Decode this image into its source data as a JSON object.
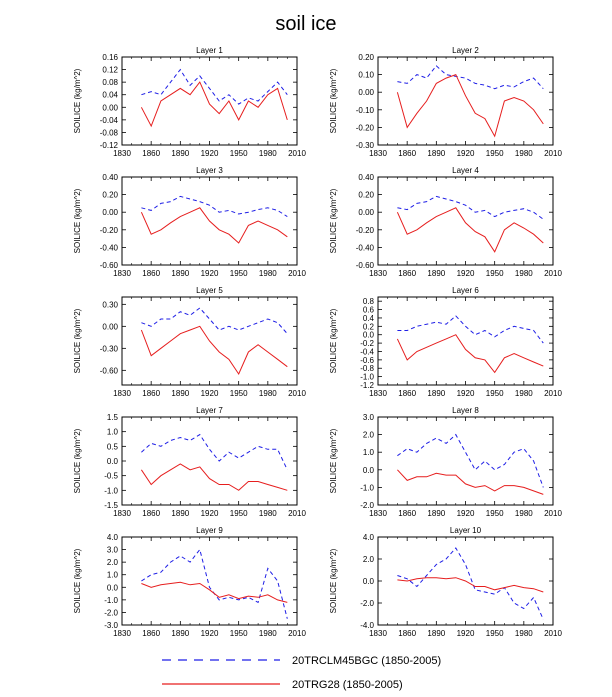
{
  "title": "soil ice",
  "colors": {
    "series_a": "#1e1ee6",
    "series_b": "#e61e1e",
    "axis": "#000000"
  },
  "legend": [
    {
      "label": "20TRCLM45BGC (1850-2005)",
      "style": "dashed",
      "color": "#1e1ee6"
    },
    {
      "label": "20TRG28 (1850-2005)",
      "style": "solid",
      "color": "#e61e1e"
    }
  ],
  "chart_data": [
    {
      "type": "line",
      "title": "Layer 1",
      "ylabel": "SOILICE  (kg/m^2)",
      "xlim": [
        1830,
        2010
      ],
      "xticks": [
        "1830",
        "1860",
        "1890",
        "1920",
        "1950",
        "1980",
        "2010"
      ],
      "ylim": [
        -0.12,
        0.16
      ],
      "yticks": [
        "-0.12",
        "-0.08",
        "-0.04",
        "0.00",
        "0.04",
        "0.08",
        "0.12",
        "0.16"
      ],
      "series": [
        {
          "name": "20TRCLM45BGC (1850-2005)",
          "x": [
            1850,
            1860,
            1870,
            1880,
            1890,
            1900,
            1910,
            1920,
            1930,
            1940,
            1950,
            1960,
            1970,
            1980,
            1990,
            2000
          ],
          "values": [
            0.04,
            0.05,
            0.04,
            0.08,
            0.12,
            0.07,
            0.1,
            0.06,
            0.02,
            0.04,
            0.01,
            0.03,
            0.02,
            0.05,
            0.08,
            0.04
          ]
        },
        {
          "name": "20TRG28 (1850-2005)",
          "x": [
            1850,
            1860,
            1870,
            1880,
            1890,
            1900,
            1910,
            1920,
            1930,
            1940,
            1950,
            1960,
            1970,
            1980,
            1990,
            2000
          ],
          "values": [
            0.0,
            -0.06,
            0.02,
            0.04,
            0.06,
            0.04,
            0.08,
            0.01,
            -0.02,
            0.02,
            -0.04,
            0.02,
            0.0,
            0.04,
            0.06,
            -0.04
          ]
        }
      ]
    },
    {
      "type": "line",
      "title": "Layer 2",
      "ylabel": "SOILICE  (kg/m^2)",
      "xlim": [
        1830,
        2010
      ],
      "xticks": [
        "1830",
        "1860",
        "1890",
        "1920",
        "1950",
        "1980",
        "2010"
      ],
      "ylim": [
        -0.3,
        0.2
      ],
      "yticks": [
        "-0.30",
        "-0.20",
        "-0.10",
        "0.00",
        "0.10",
        "0.20"
      ],
      "series": [
        {
          "name": "20TRCLM45BGC (1850-2005)",
          "x": [
            1850,
            1860,
            1870,
            1880,
            1890,
            1900,
            1910,
            1920,
            1930,
            1940,
            1950,
            1960,
            1970,
            1980,
            1990,
            2000
          ],
          "values": [
            0.06,
            0.05,
            0.1,
            0.08,
            0.15,
            0.1,
            0.09,
            0.08,
            0.05,
            0.04,
            0.02,
            0.04,
            0.03,
            0.06,
            0.08,
            0.02
          ]
        },
        {
          "name": "20TRG28 (1850-2005)",
          "x": [
            1850,
            1860,
            1870,
            1880,
            1890,
            1900,
            1910,
            1920,
            1930,
            1940,
            1950,
            1960,
            1970,
            1980,
            1990,
            2000
          ],
          "values": [
            0.0,
            -0.2,
            -0.12,
            -0.05,
            0.05,
            0.08,
            0.1,
            -0.02,
            -0.12,
            -0.15,
            -0.25,
            -0.05,
            -0.03,
            -0.05,
            -0.1,
            -0.18
          ]
        }
      ]
    },
    {
      "type": "line",
      "title": "Layer 3",
      "ylabel": "SOILICE  (kg/m^2)",
      "xlim": [
        1830,
        2010
      ],
      "xticks": [
        "1830",
        "1860",
        "1890",
        "1920",
        "1950",
        "1980",
        "2010"
      ],
      "ylim": [
        -0.6,
        0.4
      ],
      "yticks": [
        "-0.60",
        "-0.40",
        "-0.20",
        "0.00",
        "0.20",
        "0.40"
      ],
      "series": [
        {
          "name": "20TRCLM45BGC (1850-2005)",
          "x": [
            1850,
            1860,
            1870,
            1880,
            1890,
            1900,
            1910,
            1920,
            1930,
            1940,
            1950,
            1960,
            1970,
            1980,
            1990,
            2000
          ],
          "values": [
            0.05,
            0.02,
            0.1,
            0.12,
            0.18,
            0.15,
            0.12,
            0.08,
            0.0,
            0.02,
            -0.02,
            0.0,
            0.03,
            0.05,
            0.02,
            -0.05
          ]
        },
        {
          "name": "20TRG28 (1850-2005)",
          "x": [
            1850,
            1860,
            1870,
            1880,
            1890,
            1900,
            1910,
            1920,
            1930,
            1940,
            1950,
            1960,
            1970,
            1980,
            1990,
            2000
          ],
          "values": [
            0.0,
            -0.25,
            -0.2,
            -0.12,
            -0.05,
            0.0,
            0.05,
            -0.1,
            -0.2,
            -0.25,
            -0.35,
            -0.15,
            -0.1,
            -0.15,
            -0.2,
            -0.28
          ]
        }
      ]
    },
    {
      "type": "line",
      "title": "Layer 4",
      "ylabel": "SOILICE  (kg/m^2)",
      "xlim": [
        1830,
        2010
      ],
      "xticks": [
        "1830",
        "1860",
        "1890",
        "1920",
        "1950",
        "1980",
        "2010"
      ],
      "ylim": [
        -0.6,
        0.4
      ],
      "yticks": [
        "-0.60",
        "-0.40",
        "-0.20",
        "0.00",
        "0.20",
        "0.40"
      ],
      "series": [
        {
          "name": "20TRCLM45BGC (1850-2005)",
          "x": [
            1850,
            1860,
            1870,
            1880,
            1890,
            1900,
            1910,
            1920,
            1930,
            1940,
            1950,
            1960,
            1970,
            1980,
            1990,
            2000
          ],
          "values": [
            0.05,
            0.03,
            0.1,
            0.12,
            0.18,
            0.15,
            0.12,
            0.08,
            0.0,
            0.02,
            -0.05,
            0.0,
            0.02,
            0.04,
            0.0,
            -0.08
          ]
        },
        {
          "name": "20TRG28 (1850-2005)",
          "x": [
            1850,
            1860,
            1870,
            1880,
            1890,
            1900,
            1910,
            1920,
            1930,
            1940,
            1950,
            1960,
            1970,
            1980,
            1990,
            2000
          ],
          "values": [
            0.0,
            -0.25,
            -0.2,
            -0.12,
            -0.05,
            0.0,
            0.05,
            -0.12,
            -0.22,
            -0.28,
            -0.45,
            -0.2,
            -0.12,
            -0.18,
            -0.25,
            -0.35
          ]
        }
      ]
    },
    {
      "type": "line",
      "title": "Layer 5",
      "ylabel": "SOILICE  (kg/m^2)",
      "xlim": [
        1830,
        2010
      ],
      "xticks": [
        "1830",
        "1860",
        "1890",
        "1920",
        "1950",
        "1980",
        "2010"
      ],
      "ylim": [
        -0.8,
        0.4
      ],
      "yticks": [
        "-0.60",
        "-0.30",
        "0.00",
        "0.30"
      ],
      "series": [
        {
          "name": "20TRCLM45BGC (1850-2005)",
          "x": [
            1850,
            1860,
            1870,
            1880,
            1890,
            1900,
            1910,
            1920,
            1930,
            1940,
            1950,
            1960,
            1970,
            1980,
            1990,
            2000
          ],
          "values": [
            0.05,
            0.0,
            0.1,
            0.1,
            0.2,
            0.15,
            0.25,
            0.1,
            -0.05,
            0.0,
            -0.05,
            0.0,
            0.05,
            0.1,
            0.05,
            -0.1
          ]
        },
        {
          "name": "20TRG28 (1850-2005)",
          "x": [
            1850,
            1860,
            1870,
            1880,
            1890,
            1900,
            1910,
            1920,
            1930,
            1940,
            1950,
            1960,
            1970,
            1980,
            1990,
            2000
          ],
          "values": [
            -0.05,
            -0.4,
            -0.3,
            -0.2,
            -0.1,
            -0.05,
            0.0,
            -0.2,
            -0.35,
            -0.45,
            -0.65,
            -0.35,
            -0.25,
            -0.35,
            -0.45,
            -0.55
          ]
        }
      ]
    },
    {
      "type": "line",
      "title": "Layer 6",
      "ylabel": "SOILICE  (kg/m^2)",
      "xlim": [
        1830,
        2010
      ],
      "xticks": [
        "1830",
        "1860",
        "1890",
        "1920",
        "1950",
        "1980",
        "2010"
      ],
      "ylim": [
        -1.2,
        0.9
      ],
      "yticks": [
        "-1.2",
        "-1.0",
        "-0.8",
        "-0.6",
        "-0.4",
        "-0.2",
        "0.0",
        "0.2",
        "0.4",
        "0.6",
        "0.8"
      ],
      "series": [
        {
          "name": "20TRCLM45BGC (1850-2005)",
          "x": [
            1850,
            1860,
            1870,
            1880,
            1890,
            1900,
            1910,
            1920,
            1930,
            1940,
            1950,
            1960,
            1970,
            1980,
            1990,
            2000
          ],
          "values": [
            0.1,
            0.1,
            0.2,
            0.25,
            0.3,
            0.25,
            0.45,
            0.2,
            0.0,
            0.1,
            -0.05,
            0.1,
            0.2,
            0.15,
            0.1,
            -0.2
          ]
        },
        {
          "name": "20TRG28 (1850-2005)",
          "x": [
            1850,
            1860,
            1870,
            1880,
            1890,
            1900,
            1910,
            1920,
            1930,
            1940,
            1950,
            1960,
            1970,
            1980,
            1990,
            2000
          ],
          "values": [
            -0.1,
            -0.6,
            -0.4,
            -0.3,
            -0.2,
            -0.1,
            0.0,
            -0.35,
            -0.55,
            -0.6,
            -0.9,
            -0.55,
            -0.45,
            -0.55,
            -0.65,
            -0.75
          ]
        }
      ]
    },
    {
      "type": "line",
      "title": "Layer 7",
      "ylabel": "SOILICE  (kg/m^2)",
      "xlim": [
        1830,
        2010
      ],
      "xticks": [
        "1830",
        "1860",
        "1890",
        "1920",
        "1950",
        "1980",
        "2010"
      ],
      "ylim": [
        -1.5,
        1.5
      ],
      "yticks": [
        "-1.5",
        "-1.0",
        "-0.5",
        "0.0",
        "0.5",
        "1.0",
        "1.5"
      ],
      "series": [
        {
          "name": "20TRCLM45BGC (1850-2005)",
          "x": [
            1850,
            1860,
            1870,
            1880,
            1890,
            1900,
            1910,
            1920,
            1930,
            1940,
            1950,
            1960,
            1970,
            1980,
            1990,
            2000
          ],
          "values": [
            0.3,
            0.6,
            0.5,
            0.7,
            0.8,
            0.7,
            0.9,
            0.4,
            0.0,
            0.3,
            0.1,
            0.3,
            0.5,
            0.4,
            0.4,
            -0.3
          ]
        },
        {
          "name": "20TRG28 (1850-2005)",
          "x": [
            1850,
            1860,
            1870,
            1880,
            1890,
            1900,
            1910,
            1920,
            1930,
            1940,
            1950,
            1960,
            1970,
            1980,
            1990,
            2000
          ],
          "values": [
            -0.3,
            -0.8,
            -0.5,
            -0.3,
            -0.1,
            -0.3,
            -0.2,
            -0.6,
            -0.8,
            -0.8,
            -1.0,
            -0.7,
            -0.7,
            -0.8,
            -0.9,
            -1.0
          ]
        }
      ]
    },
    {
      "type": "line",
      "title": "Layer 8",
      "ylabel": "SOILICE  (kg/m^2)",
      "xlim": [
        1830,
        2010
      ],
      "xticks": [
        "1830",
        "1860",
        "1890",
        "1920",
        "1950",
        "1980",
        "2010"
      ],
      "ylim": [
        -2.0,
        3.0
      ],
      "yticks": [
        "-2.0",
        "-1.0",
        "0.0",
        "1.0",
        "2.0",
        "3.0"
      ],
      "series": [
        {
          "name": "20TRCLM45BGC (1850-2005)",
          "x": [
            1850,
            1860,
            1870,
            1880,
            1890,
            1900,
            1910,
            1920,
            1930,
            1940,
            1950,
            1960,
            1970,
            1980,
            1990,
            2000
          ],
          "values": [
            0.8,
            1.2,
            1.0,
            1.5,
            1.8,
            1.5,
            2.0,
            1.0,
            0.0,
            0.5,
            0.0,
            0.3,
            1.0,
            1.2,
            0.5,
            -1.0
          ]
        },
        {
          "name": "20TRG28 (1850-2005)",
          "x": [
            1850,
            1860,
            1870,
            1880,
            1890,
            1900,
            1910,
            1920,
            1930,
            1940,
            1950,
            1960,
            1970,
            1980,
            1990,
            2000
          ],
          "values": [
            0.0,
            -0.6,
            -0.4,
            -0.4,
            -0.2,
            -0.3,
            -0.3,
            -0.8,
            -1.0,
            -0.9,
            -1.2,
            -0.9,
            -0.9,
            -1.0,
            -1.2,
            -1.4
          ]
        }
      ]
    },
    {
      "type": "line",
      "title": "Layer 9",
      "ylabel": "SOILICE  (kg/m^2)",
      "xlim": [
        1830,
        2010
      ],
      "xticks": [
        "1830",
        "1860",
        "1890",
        "1920",
        "1950",
        "1980",
        "2010"
      ],
      "ylim": [
        -3.0,
        4.0
      ],
      "yticks": [
        "-3.0",
        "-2.0",
        "-1.0",
        "0.0",
        "1.0",
        "2.0",
        "3.0",
        "4.0"
      ],
      "series": [
        {
          "name": "20TRCLM45BGC (1850-2005)",
          "x": [
            1850,
            1860,
            1870,
            1880,
            1890,
            1900,
            1910,
            1920,
            1930,
            1940,
            1950,
            1960,
            1970,
            1980,
            1990,
            2000
          ],
          "values": [
            0.5,
            1.0,
            1.2,
            2.0,
            2.5,
            2.0,
            3.0,
            0.0,
            -1.0,
            -0.8,
            -1.0,
            -0.8,
            -1.2,
            1.5,
            0.5,
            -2.5
          ]
        },
        {
          "name": "20TRG28 (1850-2005)",
          "x": [
            1850,
            1860,
            1870,
            1880,
            1890,
            1900,
            1910,
            1920,
            1930,
            1940,
            1950,
            1960,
            1970,
            1980,
            1990,
            2000
          ],
          "values": [
            0.3,
            0.0,
            0.2,
            0.3,
            0.4,
            0.2,
            0.3,
            -0.2,
            -0.8,
            -0.6,
            -0.9,
            -0.7,
            -0.8,
            -0.6,
            -1.0,
            -1.2
          ]
        }
      ]
    },
    {
      "type": "line",
      "title": "Layer 10",
      "ylabel": "SOILICE  (kg/m^2)",
      "xlim": [
        1830,
        2010
      ],
      "xticks": [
        "1830",
        "1860",
        "1890",
        "1920",
        "1950",
        "1980",
        "2010"
      ],
      "ylim": [
        -4.0,
        4.0
      ],
      "yticks": [
        "-4.0",
        "-2.0",
        "0.0",
        "2.0",
        "4.0"
      ],
      "series": [
        {
          "name": "20TRCLM45BGC (1850-2005)",
          "x": [
            1850,
            1860,
            1870,
            1880,
            1890,
            1900,
            1910,
            1920,
            1930,
            1940,
            1950,
            1960,
            1970,
            1980,
            1990,
            2000
          ],
          "values": [
            0.5,
            0.2,
            -0.5,
            0.5,
            1.5,
            2.0,
            3.0,
            1.5,
            -0.8,
            -1.0,
            -1.2,
            -0.6,
            -2.0,
            -2.5,
            -1.5,
            -3.5
          ]
        },
        {
          "name": "20TRG28 (1850-2005)",
          "x": [
            1850,
            1860,
            1870,
            1880,
            1890,
            1900,
            1910,
            1920,
            1930,
            1940,
            1950,
            1960,
            1970,
            1980,
            1990,
            2000
          ],
          "values": [
            0.1,
            0.0,
            0.2,
            0.3,
            0.3,
            0.2,
            0.3,
            0.0,
            -0.5,
            -0.5,
            -0.8,
            -0.6,
            -0.4,
            -0.6,
            -0.7,
            -1.0
          ]
        }
      ]
    }
  ]
}
